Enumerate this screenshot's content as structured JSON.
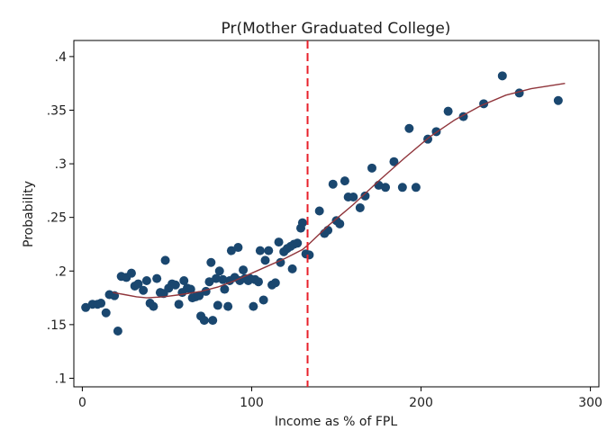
{
  "chart_data": {
    "type": "scatter",
    "title": "Pr(Mother Graduated College)",
    "xlabel": "Income as % of FPL",
    "ylabel": "Probability",
    "xlim": [
      -5,
      305
    ],
    "ylim": [
      0.092,
      0.415
    ],
    "xticks": [
      0,
      100,
      200,
      300
    ],
    "xtick_labels": [
      "0",
      "100",
      "200",
      "300"
    ],
    "yticks": [
      0.1,
      0.15,
      0.2,
      0.25,
      0.3,
      0.35,
      0.4
    ],
    "ytick_labels": [
      ".1",
      ".15",
      ".2",
      ".25",
      ".3",
      ".35",
      ".4"
    ],
    "grid": false,
    "legend": "none",
    "cutoff_x": 133,
    "colors": {
      "points": "#1a476f",
      "fit_line": "#90353b",
      "cutoff_line": "#e8202a"
    },
    "series": [
      {
        "values": [
          [
            2,
            0.166
          ],
          [
            6,
            0.169
          ],
          [
            9,
            0.169
          ],
          [
            11,
            0.17
          ],
          [
            14,
            0.161
          ],
          [
            16,
            0.178
          ],
          [
            19,
            0.177
          ],
          [
            21,
            0.144
          ],
          [
            23,
            0.195
          ],
          [
            26,
            0.194
          ],
          [
            29,
            0.198
          ],
          [
            31,
            0.186
          ],
          [
            33,
            0.188
          ],
          [
            36,
            0.182
          ],
          [
            38,
            0.191
          ],
          [
            40,
            0.17
          ],
          [
            42,
            0.167
          ],
          [
            44,
            0.193
          ],
          [
            46,
            0.18
          ],
          [
            48,
            0.179
          ],
          [
            49,
            0.21
          ],
          [
            51,
            0.184
          ],
          [
            53,
            0.188
          ],
          [
            55,
            0.187
          ],
          [
            57,
            0.169
          ],
          [
            59,
            0.18
          ],
          [
            60,
            0.191
          ],
          [
            62,
            0.184
          ],
          [
            64,
            0.183
          ],
          [
            65,
            0.175
          ],
          [
            67,
            0.176
          ],
          [
            69,
            0.177
          ],
          [
            70,
            0.158
          ],
          [
            72,
            0.154
          ],
          [
            73,
            0.181
          ],
          [
            75,
            0.19
          ],
          [
            76,
            0.208
          ],
          [
            77,
            0.154
          ],
          [
            79,
            0.193
          ],
          [
            80,
            0.168
          ],
          [
            81,
            0.2
          ],
          [
            83,
            0.192
          ],
          [
            84,
            0.183
          ],
          [
            86,
            0.167
          ],
          [
            87,
            0.191
          ],
          [
            88,
            0.219
          ],
          [
            90,
            0.194
          ],
          [
            92,
            0.222
          ],
          [
            93,
            0.191
          ],
          [
            95,
            0.201
          ],
          [
            96,
            0.193
          ],
          [
            98,
            0.191
          ],
          [
            99,
            0.193
          ],
          [
            101,
            0.167
          ],
          [
            102,
            0.192
          ],
          [
            104,
            0.19
          ],
          [
            105,
            0.219
          ],
          [
            107,
            0.173
          ],
          [
            108,
            0.21
          ],
          [
            110,
            0.219
          ],
          [
            112,
            0.187
          ],
          [
            114,
            0.189
          ],
          [
            116,
            0.227
          ],
          [
            117,
            0.208
          ],
          [
            119,
            0.218
          ],
          [
            121,
            0.221
          ],
          [
            123,
            0.223
          ],
          [
            124,
            0.202
          ],
          [
            125,
            0.225
          ],
          [
            127,
            0.226
          ],
          [
            129,
            0.24
          ],
          [
            130,
            0.245
          ],
          [
            132,
            0.216
          ],
          [
            134,
            0.215
          ],
          [
            140,
            0.256
          ],
          [
            143,
            0.235
          ],
          [
            145,
            0.238
          ],
          [
            148,
            0.281
          ],
          [
            150,
            0.247
          ],
          [
            152,
            0.244
          ],
          [
            155,
            0.284
          ],
          [
            157,
            0.269
          ],
          [
            160,
            0.269
          ],
          [
            164,
            0.259
          ],
          [
            167,
            0.27
          ],
          [
            171,
            0.296
          ],
          [
            175,
            0.28
          ],
          [
            179,
            0.278
          ],
          [
            184,
            0.302
          ],
          [
            189,
            0.278
          ],
          [
            193,
            0.333
          ],
          [
            197,
            0.278
          ],
          [
            204,
            0.323
          ],
          [
            209,
            0.33
          ],
          [
            216,
            0.349
          ],
          [
            225,
            0.344
          ],
          [
            237,
            0.356
          ],
          [
            248,
            0.382
          ],
          [
            258,
            0.366
          ],
          [
            281,
            0.359
          ]
        ]
      }
    ],
    "fit_line": [
      [
        18,
        0.18
      ],
      [
        25,
        0.178
      ],
      [
        32,
        0.176
      ],
      [
        38,
        0.175
      ],
      [
        48,
        0.176
      ],
      [
        58,
        0.178
      ],
      [
        70,
        0.181
      ],
      [
        80,
        0.185
      ],
      [
        90,
        0.191
      ],
      [
        100,
        0.198
      ],
      [
        110,
        0.205
      ],
      [
        120,
        0.212
      ],
      [
        130,
        0.22
      ],
      [
        133,
        0.224
      ],
      [
        145,
        0.242
      ],
      [
        160,
        0.262
      ],
      [
        175,
        0.284
      ],
      [
        190,
        0.305
      ],
      [
        205,
        0.325
      ],
      [
        220,
        0.341
      ],
      [
        235,
        0.354
      ],
      [
        250,
        0.364
      ],
      [
        265,
        0.37
      ],
      [
        285,
        0.375
      ]
    ]
  }
}
